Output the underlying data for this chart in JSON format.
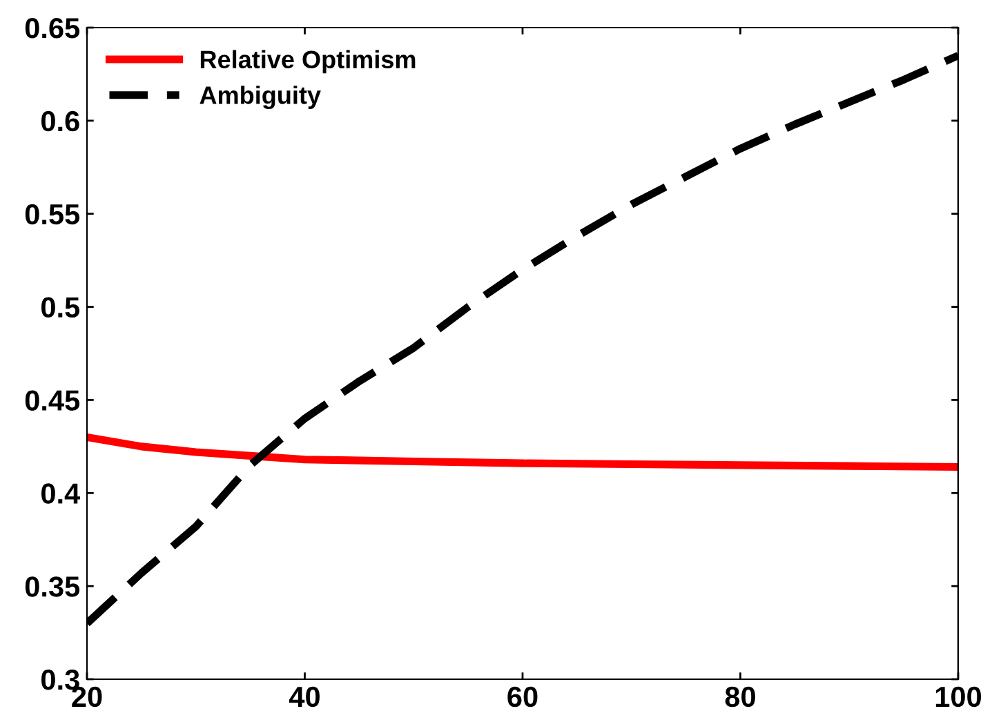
{
  "chart_data": {
    "type": "line",
    "xlim": [
      20,
      100
    ],
    "ylim": [
      0.3,
      0.65
    ],
    "xticks": [
      20,
      40,
      60,
      80,
      100
    ],
    "yticks": [
      0.3,
      0.35,
      0.4,
      0.45,
      0.5,
      0.55,
      0.6,
      0.65
    ],
    "grid": false,
    "legend": "top left",
    "series": [
      {
        "name": "Relative Optimism",
        "color": "#ff0000",
        "line_style": "solid",
        "x": [
          20,
          25,
          30,
          35,
          40,
          50,
          60,
          70,
          80,
          90,
          100
        ],
        "values": [
          0.43,
          0.425,
          0.422,
          0.42,
          0.418,
          0.417,
          0.416,
          0.4155,
          0.415,
          0.4145,
          0.414
        ]
      },
      {
        "name": "Ambiguity",
        "color": "#000000",
        "line_style": "dashed",
        "x": [
          20,
          25,
          30,
          35,
          40,
          45,
          50,
          55,
          60,
          65,
          70,
          75,
          80,
          85,
          90,
          95,
          100
        ],
        "values": [
          0.33,
          0.357,
          0.382,
          0.415,
          0.44,
          0.46,
          0.478,
          0.5,
          0.52,
          0.538,
          0.555,
          0.57,
          0.585,
          0.598,
          0.61,
          0.622,
          0.635
        ]
      }
    ]
  }
}
